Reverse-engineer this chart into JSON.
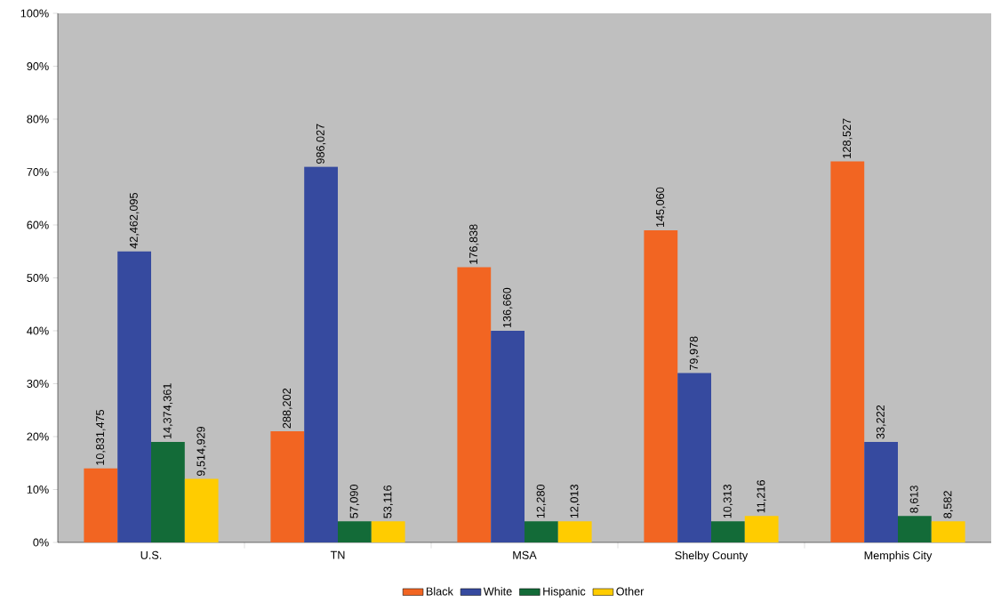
{
  "chart_data": {
    "type": "bar",
    "categories": [
      "U.S.",
      "TN",
      "MSA",
      "Shelby County",
      "Memphis City"
    ],
    "series": [
      {
        "name": "Black",
        "color": "#f26522",
        "values": [
          14,
          21,
          52,
          59,
          72
        ]
      },
      {
        "name": "White",
        "color": "#364a9f",
        "values": [
          55,
          71,
          40,
          32,
          19
        ]
      },
      {
        "name": "Hispanic",
        "color": "#136b38",
        "values": [
          19,
          4,
          4,
          4,
          5
        ]
      },
      {
        "name": "Other",
        "color": "#ffcc00",
        "values": [
          12,
          4,
          4,
          5,
          4
        ]
      }
    ],
    "annotations": [
      "10,831,475",
      "42,462,095",
      "14,374,361",
      "9,514,929",
      "288,202",
      "986,027",
      "57,090",
      "53,116",
      "176,838",
      "136,660",
      "12,280",
      "12,013",
      "145,060",
      "79,978",
      "10,313",
      "11,216",
      "128,527",
      "33,222",
      "8,613",
      "8,582"
    ],
    "ylim": [
      0,
      100
    ],
    "yticks": [
      {
        "value": 0,
        "label": "0%"
      },
      {
        "value": 10,
        "label": "10%"
      },
      {
        "value": 20,
        "label": "20%"
      },
      {
        "value": 30,
        "label": "30%"
      },
      {
        "value": 40,
        "label": "40%"
      },
      {
        "value": 50,
        "label": "50%"
      },
      {
        "value": 60,
        "label": "60%"
      },
      {
        "value": 70,
        "label": "70%"
      },
      {
        "value": 80,
        "label": "80%"
      },
      {
        "value": 90,
        "label": "90%"
      },
      {
        "value": 100,
        "label": "100%"
      }
    ],
    "grid": false,
    "legend": "bottom"
  }
}
